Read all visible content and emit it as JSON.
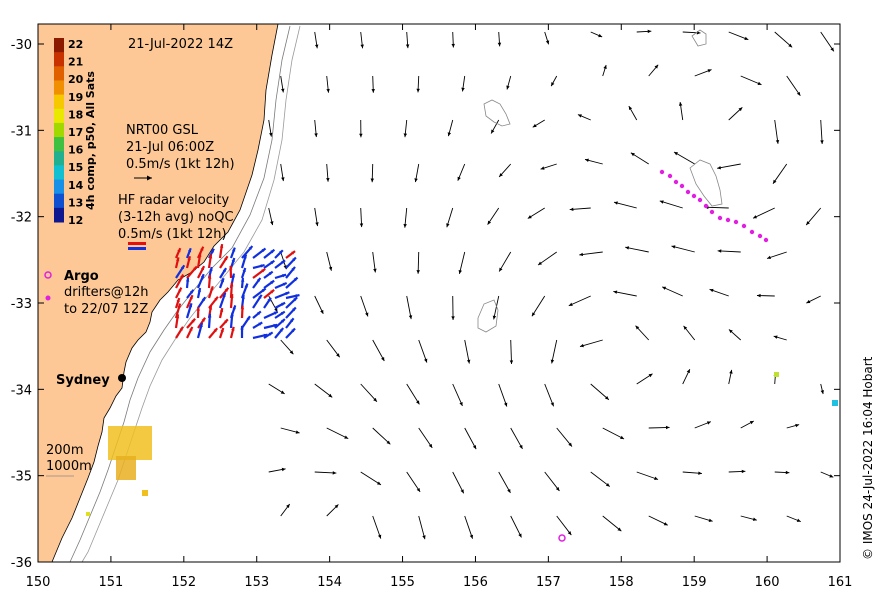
{
  "map": {
    "date_label": "21-Jul-2022 14Z",
    "x_ticks": [
      "150",
      "151",
      "152",
      "153",
      "154",
      "155",
      "156",
      "157",
      "158",
      "159",
      "160",
      "161"
    ],
    "y_ticks": [
      "-30",
      "-31",
      "-32",
      "-33",
      "-34",
      "-35",
      "-36"
    ],
    "x_range": [
      150,
      161
    ],
    "y_range": [
      -36,
      -30
    ],
    "land_color": "#fdc896",
    "vector_color": "#000000",
    "credit": "© IMOS 24-Jul-2022 16:04 Hobart"
  },
  "colorbar": {
    "label": "4h comp, p50, All Sats",
    "ticks": [
      "22",
      "21",
      "20",
      "19",
      "18",
      "17",
      "16",
      "15",
      "14",
      "13",
      "12"
    ],
    "colors": [
      "#8b1a00",
      "#c83200",
      "#e06000",
      "#f09000",
      "#f5c800",
      "#e8e800",
      "#a0d800",
      "#40c040",
      "#20b090",
      "#10c0d0",
      "#1890e8",
      "#1050d0",
      "#101890"
    ]
  },
  "legend": {
    "model_lines": [
      "NRT00 GSL",
      "21-Jul 06:00Z",
      "0.5m/s (1kt 12h)"
    ],
    "radar_lines": [
      "HF radar velocity",
      "(3-12h avg) noQC",
      "0.5m/s (1kt 12h)"
    ],
    "radar_colors": [
      "#e01010",
      "#1030e0"
    ],
    "argo_label": "Argo",
    "drifter_lines": [
      "drifters@12h",
      "to 22/07 12Z"
    ],
    "argo_color": "#e020e0",
    "drifter_color": "#e020e0",
    "city_label": "Sydney",
    "contour_lines": [
      "200m",
      "1000m"
    ]
  }
}
